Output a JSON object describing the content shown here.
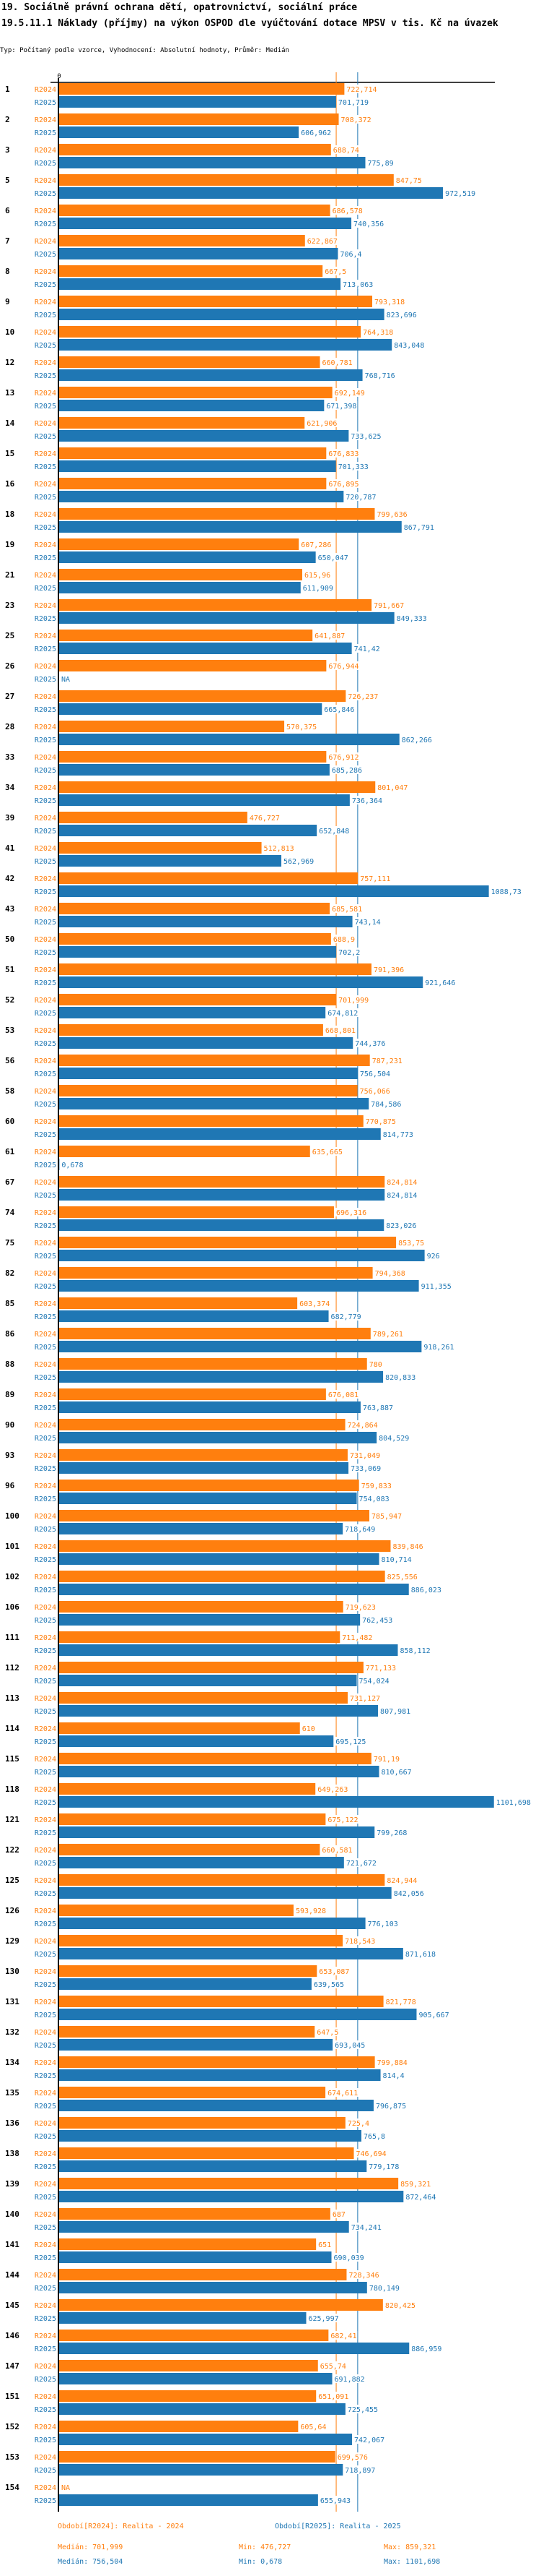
{
  "title_line1": "19. Sociálně právní ochrana dětí, opatrovnictví, sociální práce",
  "title_line2": "19.5.11.1 Náklady (příjmy) na výkon OSPOD dle vyúčtování dotace MPSV v tis. Kč na úvazek",
  "subtitle": "Typ: Počítaný podle vzorce, Vyhodnocení: Absolutní hodnoty, Průměr: Medián",
  "colors": {
    "R2024": "#ff7f0e",
    "R2025": "#1f77b4"
  },
  "chart_data": {
    "type": "bar",
    "orientation": "horizontal",
    "xlim": [
      0,
      1104
    ],
    "x_tick_labels": [
      "0"
    ],
    "categories": [
      "1",
      "2",
      "3",
      "5",
      "6",
      "7",
      "8",
      "9",
      "10",
      "12",
      "13",
      "14",
      "15",
      "16",
      "18",
      "19",
      "21",
      "23",
      "25",
      "26",
      "27",
      "28",
      "33",
      "34",
      "39",
      "41",
      "42",
      "43",
      "50",
      "51",
      "52",
      "53",
      "56",
      "58",
      "60",
      "61",
      "67",
      "74",
      "75",
      "82",
      "85",
      "86",
      "88",
      "89",
      "90",
      "93",
      "96",
      "100",
      "101",
      "102",
      "106",
      "111",
      "112",
      "113",
      "114",
      "115",
      "118",
      "121",
      "122",
      "125",
      "126",
      "129",
      "130",
      "131",
      "132",
      "134",
      "135",
      "136",
      "138",
      "139",
      "140",
      "141",
      "144",
      "145",
      "146",
      "147",
      "151",
      "152",
      "153",
      "154"
    ],
    "series": [
      {
        "name": "R2024",
        "values": [
          722.714,
          708.372,
          688.74,
          847.75,
          686.578,
          622.867,
          667.5,
          793.318,
          764.318,
          660.781,
          692.149,
          621.906,
          676.833,
          676.895,
          799.636,
          607.286,
          615.96,
          791.667,
          641.887,
          676.944,
          726.237,
          570.375,
          676.912,
          801.047,
          476.727,
          512.813,
          757.111,
          685.581,
          688.9,
          791.396,
          701.999,
          668.801,
          787.231,
          756.066,
          770.875,
          635.665,
          824.814,
          696.316,
          853.75,
          794.368,
          603.374,
          789.261,
          780,
          676.081,
          724.864,
          731.049,
          759.833,
          785.947,
          839.846,
          825.556,
          719.623,
          711.482,
          771.133,
          731.127,
          610,
          791.19,
          649.263,
          675.122,
          660.581,
          824.944,
          593.928,
          718.543,
          653.087,
          821.778,
          647.5,
          799.884,
          674.611,
          725.4,
          746.694,
          859.321,
          687,
          651,
          728.346,
          820.425,
          682.41,
          655.74,
          651.091,
          605.64,
          699.576,
          null
        ]
      },
      {
        "name": "R2025",
        "values": [
          701.719,
          606.962,
          775.89,
          972.519,
          740.356,
          706.4,
          713.063,
          823.696,
          843.048,
          768.716,
          671.398,
          733.625,
          701.333,
          720.787,
          867.791,
          650.047,
          611.909,
          849.333,
          741.42,
          null,
          665.846,
          862.266,
          685.286,
          736.364,
          652.848,
          562.969,
          1088.73,
          743.14,
          702.2,
          921.646,
          674.812,
          744.376,
          756.504,
          784.586,
          814.773,
          0.678,
          824.814,
          823.026,
          926,
          911.355,
          682.779,
          918.261,
          820.833,
          763.887,
          804.529,
          733.069,
          754.083,
          718.649,
          810.714,
          886.023,
          762.453,
          858.112,
          754.024,
          807.981,
          695.125,
          810.667,
          1101.698,
          799.268,
          721.672,
          842.056,
          776.103,
          871.618,
          639.565,
          905.667,
          693.045,
          814.4,
          796.875,
          765.8,
          779.178,
          872.464,
          734.241,
          690.039,
          780.149,
          625.997,
          886.959,
          691.882,
          725.455,
          742.067,
          718.897,
          655.943
        ]
      }
    ],
    "na_label": "NA",
    "medians": {
      "R2024": 701.999,
      "R2025": 756.504
    },
    "legend": [
      {
        "series": "R2024",
        "label": "Období[R2024]: Realita - 2024"
      },
      {
        "series": "R2025",
        "label": "Období[R2025]: Realita - 2025"
      }
    ],
    "stats": {
      "R2024": {
        "median": "Medián: 701,999",
        "min": "Min: 476,727",
        "max": "Max: 859,321"
      },
      "R2025": {
        "median": "Medián: 756,504",
        "min": "Min: 0,678",
        "max": "Max: 1101,698"
      }
    }
  }
}
